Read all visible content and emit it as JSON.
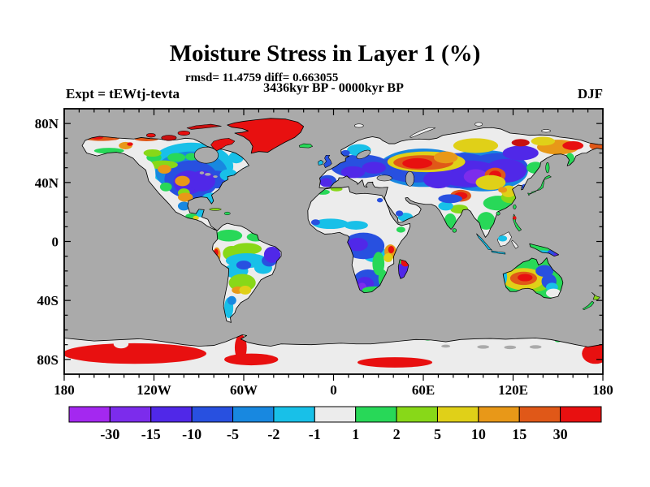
{
  "figure": {
    "title": "Moisture Stress in Layer 1 (%)",
    "stats_line": "rmsd= 11.4759 diff= 0.663055",
    "comparison_line": "3436kyr BP - 0000kyr BP",
    "experiment_label": "Expt = tEWtj-tevta",
    "season_label": "DJF"
  },
  "chart_data": {
    "type": "heatmap",
    "subtype": "filled-contour-world-map",
    "title": "Moisture Stress in Layer 1 (%)",
    "rmsd": 11.4759,
    "diff": 0.663055,
    "comparison": "3436kyr BP - 0000kyr BP",
    "experiment": "tEWtj-tevta",
    "season": "DJF",
    "projection": "equirectangular",
    "lon_range": [
      -180,
      180
    ],
    "lat_range": [
      -90,
      90
    ],
    "x_tick_lons": [
      -180,
      -120,
      -60,
      0,
      60,
      120,
      180
    ],
    "x_tick_labels": [
      "180",
      "120W",
      "60W",
      "0",
      "60E",
      "120E",
      "180"
    ],
    "y_tick_lats": [
      80,
      40,
      0,
      -40,
      -80
    ],
    "y_tick_labels": [
      "80N",
      "40N",
      "0",
      "40S",
      "80S"
    ],
    "minor_tick_deg": 10,
    "major_x_tick_deg": 60,
    "major_y_tick_deg": 40,
    "ocean_color": "#AAAAAA",
    "nodata_land_color": "#ECECEC",
    "colorbar": {
      "levels": [
        -30,
        -15,
        -10,
        -5,
        -2,
        -1,
        1,
        2,
        5,
        10,
        15,
        30
      ],
      "tick_labels": [
        "-30",
        "-15",
        "-10",
        "-5",
        "-2",
        "-1",
        "1",
        "2",
        "5",
        "10",
        "15",
        "30"
      ],
      "colors": [
        "#A428F0",
        "#7C2CEC",
        "#5028E8",
        "#2850E0",
        "#1888E0",
        "#18C0E8",
        "#ECECEC",
        "#28D858",
        "#88D818",
        "#E0D018",
        "#E89818",
        "#E05818",
        "#E81010"
      ]
    },
    "regions_summary": [
      {
        "region": "Greenland",
        "value": "> +30 (red)"
      },
      {
        "region": "Canadian Arctic islands",
        "value": "+15 to > +30 (red/dark red)"
      },
      {
        "region": "Alaska north coast",
        "value": "+15 to +30 orange band, interior near 0"
      },
      {
        "region": "Central North America / US interior",
        "value": "-5 to -15 (blue/purple) with local +10 to +15 orange spots"
      },
      {
        "region": "US west coast strip",
        "value": "-1 to +1 (white)"
      },
      {
        "region": "Amazon / northern South America",
        "value": "-1 to +5 (white/green)"
      },
      {
        "region": "Eastern Brazil",
        "value": "-10 to -15 (purple)"
      },
      {
        "region": "Peru coast",
        "value": "+10 to > +30 spot"
      },
      {
        "region": "Argentina",
        "value": "+2 to +15 (green/yellow with orange spot)"
      },
      {
        "region": "Sahara / Arabia",
        "value": "-1 to +1 (white)"
      },
      {
        "region": "Central and southern Africa",
        "value": "-5 to -15 (blue/purple) with green fringes"
      },
      {
        "region": "East Africa",
        "value": "+10 to > +30 spot"
      },
      {
        "region": "Europe",
        "value": "-5 to -15 (blue/purple)"
      },
      {
        "region": "West Siberia",
        "value": "+10 to > +30 elongated orange/red band with yellow fringe"
      },
      {
        "region": "Central Asia / Mongolia",
        "value": "-10 to -30 (purple) with embedded red +30 spots"
      },
      {
        "region": "Northeast Siberia",
        "value": "+15 to > +30 patches"
      },
      {
        "region": "India / Southeast Asia",
        "value": "near 0 with +2 to +10 green/yellow fringes, -5 blue in north"
      },
      {
        "region": "Central Australia",
        "value": "+10 to > +30 core, yellow ring, green rim, -5 to -10 blue arc in northeast"
      },
      {
        "region": "Antarctica interior",
        "value": "-1 to +1 (white)"
      },
      {
        "region": "Antarctica coastal segments (W hemisphere, peninsula, far east)",
        "value": "> +30 (red)"
      }
    ]
  }
}
